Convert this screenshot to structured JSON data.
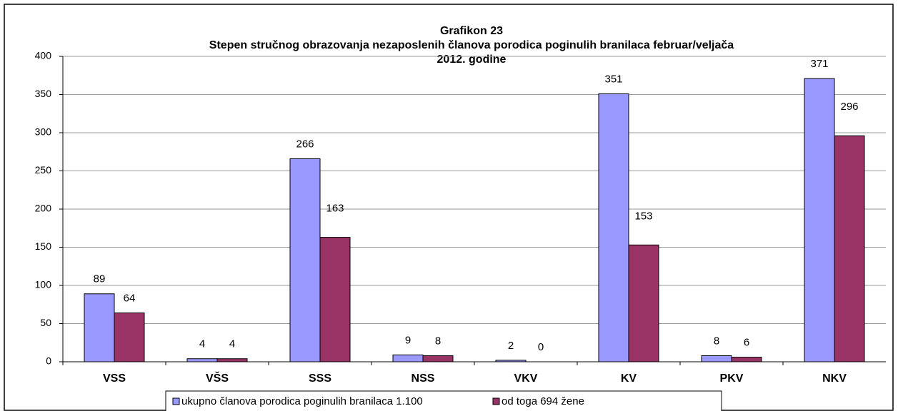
{
  "chart_data": {
    "type": "bar",
    "title": [
      "Grafikon 23",
      "Stepen stručnog obrazovanja nezaposlenih članova porodica poginulih branilaca  februar/veljača",
      "2012. godine"
    ],
    "categories": [
      "VSS",
      "VŠS",
      "SSS",
      "NSS",
      "VKV",
      "KV",
      "PKV",
      "NKV"
    ],
    "series": [
      {
        "name": "ukupno članova porodica poginulih branilaca 1.100",
        "color": "#9999ff",
        "values": [
          89,
          4,
          266,
          9,
          2,
          351,
          8,
          371
        ]
      },
      {
        "name": "od toga 694 žene",
        "color": "#993366",
        "values": [
          64,
          4,
          163,
          8,
          0,
          153,
          6,
          296
        ]
      }
    ],
    "ylim": [
      0,
      400
    ],
    "yticks": [
      0,
      50,
      100,
      150,
      200,
      250,
      300,
      350,
      400
    ],
    "grid": true,
    "legend": "bottom"
  }
}
